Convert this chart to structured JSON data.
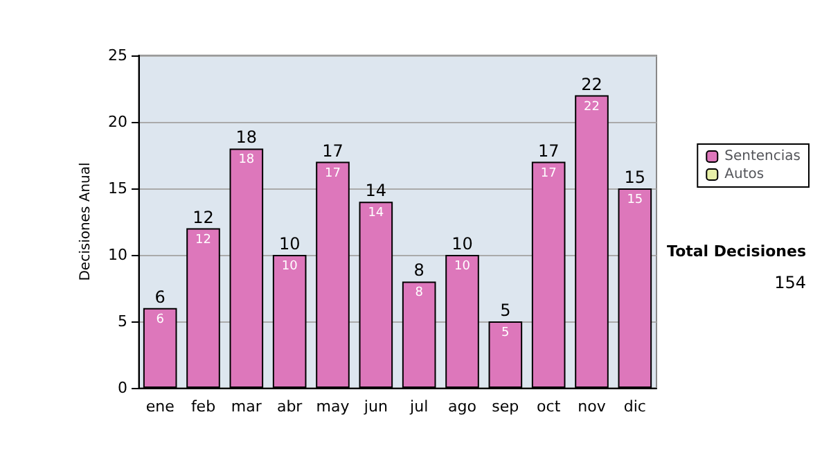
{
  "chart_data": {
    "type": "bar",
    "ylabel": "Decisiones Anual",
    "categories": [
      "ene",
      "feb",
      "mar",
      "abr",
      "may",
      "jun",
      "jul",
      "ago",
      "sep",
      "oct",
      "nov",
      "dic"
    ],
    "series": [
      {
        "name": "Sentencias",
        "color": "#dd77bb",
        "values": [
          6,
          12,
          18,
          10,
          17,
          14,
          8,
          10,
          5,
          17,
          22,
          15
        ]
      },
      {
        "name": "Autos",
        "color": "#e8f0a8",
        "values": [
          null,
          null,
          null,
          null,
          null,
          null,
          null,
          null,
          null,
          null,
          null,
          null
        ]
      }
    ],
    "ylim": [
      0,
      25
    ],
    "yticks": [
      0,
      5,
      10,
      15,
      20,
      25
    ],
    "grid": "y",
    "legend": "right",
    "data_labels": true,
    "annotations": [
      "Total Decisiones",
      "154",
      {
        "text": "6",
        "x": "ene",
        "y": 6
      },
      {
        "text": "12",
        "x": "feb",
        "y": 12
      },
      {
        "text": "18",
        "x": "mar",
        "y": 18
      },
      {
        "text": "10",
        "x": "abr",
        "y": 10
      },
      {
        "text": "17",
        "x": "may",
        "y": 17
      },
      {
        "text": "14",
        "x": "jun",
        "y": 14
      },
      {
        "text": "8",
        "x": "jul",
        "y": 8
      },
      {
        "text": "10",
        "x": "ago",
        "y": 10
      },
      {
        "text": "5",
        "x": "sep",
        "y": 5
      },
      {
        "text": "17",
        "x": "oct",
        "y": 17
      },
      {
        "text": "22",
        "x": "nov",
        "y": 22
      },
      {
        "text": "15",
        "x": "dic",
        "y": 15
      }
    ]
  }
}
